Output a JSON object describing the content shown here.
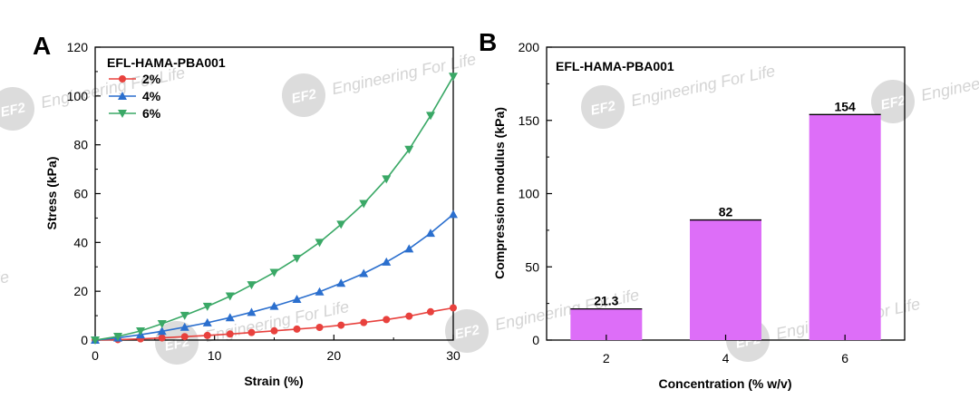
{
  "watermark": {
    "logo": "EF2",
    "text": "Engineering For Life"
  },
  "chart_data": [
    {
      "type": "line",
      "panel_label": "A",
      "title": "EFL-HAMA-PBA001",
      "xlabel": "Strain (%)",
      "ylabel": "Stress (kPa)",
      "xlim": [
        0,
        30
      ],
      "ylim": [
        0,
        120
      ],
      "x_ticks": [
        0,
        10,
        20,
        30
      ],
      "y_ticks": [
        0,
        20,
        40,
        60,
        80,
        100,
        120
      ],
      "grid": false,
      "legend": "top-left",
      "series": [
        {
          "name": "2%",
          "color": "#e8413d",
          "marker": "circle",
          "x": [
            0,
            1.9,
            3.8,
            5.6,
            7.5,
            9.4,
            11.3,
            13.1,
            15,
            16.9,
            18.8,
            20.6,
            22.5,
            24.4,
            26.3,
            28.1,
            30
          ],
          "y": [
            0,
            0.2,
            0.5,
            0.9,
            1.4,
            1.9,
            2.5,
            3.1,
            3.8,
            4.5,
            5.2,
            6.1,
            7.2,
            8.4,
            9.8,
            11.6,
            13.2
          ]
        },
        {
          "name": "4%",
          "color": "#2b6fce",
          "marker": "triangle-up",
          "x": [
            0,
            1.9,
            3.8,
            5.6,
            7.5,
            9.4,
            11.3,
            13.1,
            15,
            16.9,
            18.8,
            20.6,
            22.5,
            24.4,
            26.3,
            28.1,
            30
          ],
          "y": [
            0,
            0.9,
            2.2,
            3.6,
            5.3,
            7.1,
            9.2,
            11.4,
            13.9,
            16.7,
            19.8,
            23.3,
            27.3,
            32,
            37.4,
            43.8,
            51.5
          ]
        },
        {
          "name": "6%",
          "color": "#3aa866",
          "marker": "triangle-down",
          "x": [
            0,
            1.9,
            3.8,
            5.6,
            7.5,
            9.4,
            11.3,
            13.1,
            15,
            16.9,
            18.8,
            20.6,
            22.5,
            24.4,
            26.3,
            28.1,
            30
          ],
          "y": [
            0,
            1.5,
            3.7,
            6.7,
            10.1,
            13.8,
            18,
            22.6,
            27.7,
            33.5,
            40,
            47.4,
            55.9,
            66,
            78.1,
            92,
            108
          ]
        }
      ]
    },
    {
      "type": "bar",
      "panel_label": "B",
      "title": "EFL-HAMA-PBA001",
      "xlabel": "Concentration (% w/v)",
      "ylabel": "Compression modulus (kPa)",
      "categories": [
        "2",
        "4",
        "6"
      ],
      "values": [
        21.3,
        82,
        154
      ],
      "value_labels": [
        "21.3",
        "82",
        "154"
      ],
      "ylim": [
        0,
        200
      ],
      "y_ticks": [
        0,
        50,
        100,
        150,
        200
      ],
      "bar_color": "#dd6ef8",
      "grid": false
    }
  ]
}
